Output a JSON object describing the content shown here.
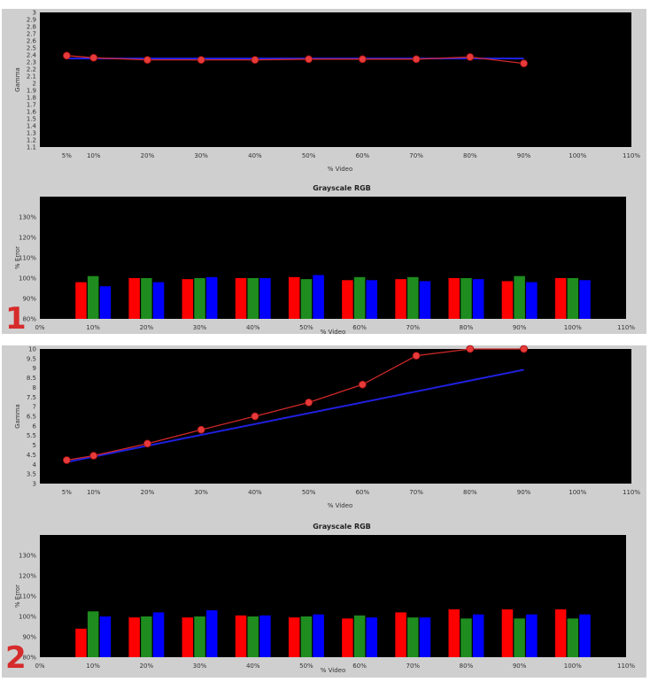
{
  "sections": [
    {
      "label": "1",
      "label_color": "#d62b2b"
    },
    {
      "label": "2",
      "label_color": "#d62b2b"
    }
  ],
  "colors": {
    "measured_line": "#d22828",
    "target_line": "#2020e0",
    "marker": "#e83a3a",
    "red_bar": "#ff0000",
    "green_bar": "#1e8c1e",
    "blue_bar": "#0000ff"
  },
  "chart_data": [
    {
      "type": "line",
      "xlabel": "% Video",
      "ylabel": "Gamma",
      "x_ticks": [
        "5%",
        "10%",
        "20%",
        "30%",
        "40%",
        "50%",
        "60%",
        "70%",
        "80%",
        "90%",
        "100%",
        "110%"
      ],
      "x_tick_values": [
        5,
        10,
        20,
        30,
        40,
        50,
        60,
        70,
        80,
        90,
        100,
        110
      ],
      "xlim": [
        0,
        110
      ],
      "y_ticks": [
        "1.1",
        "1.2",
        "1.3",
        "1.4",
        "1.5",
        "1.6",
        "1.7",
        "1.8",
        "1.9",
        "2",
        "2.1",
        "2.2",
        "2.3",
        "2.4",
        "2.5",
        "2.6",
        "2.7",
        "2.8",
        "2.9",
        "3"
      ],
      "ylim": [
        1.1,
        3.0
      ],
      "series": [
        {
          "role": "measured",
          "x": [
            5,
            10,
            20,
            30,
            40,
            50,
            60,
            70,
            80,
            90
          ],
          "values": [
            2.39,
            2.36,
            2.33,
            2.33,
            2.33,
            2.34,
            2.34,
            2.34,
            2.37,
            2.28
          ]
        },
        {
          "role": "target",
          "x": [
            5,
            90
          ],
          "values": [
            2.35,
            2.35
          ]
        }
      ]
    },
    {
      "type": "bar",
      "title": "Grayscale RGB",
      "xlabel": "% Video",
      "ylabel": "% Error",
      "x_ticks": [
        "0%",
        "10%",
        "20%",
        "30%",
        "40%",
        "50%",
        "60%",
        "70%",
        "80%",
        "90%",
        "100%",
        "110%"
      ],
      "x_tick_values": [
        0,
        10,
        20,
        30,
        40,
        50,
        60,
        70,
        80,
        90,
        100,
        110
      ],
      "xlim": [
        0,
        110
      ],
      "y_ticks": [
        "80%",
        "90%",
        "100%",
        "110%",
        "120%",
        "130%"
      ],
      "ylim": [
        80,
        140
      ],
      "categories": [
        10,
        20,
        30,
        40,
        50,
        60,
        70,
        80,
        90,
        100
      ],
      "series": [
        {
          "channel": "red",
          "values": [
            98,
            100,
            99.5,
            100,
            100.5,
            99,
            99.5,
            100,
            98.5,
            100
          ]
        },
        {
          "channel": "green",
          "values": [
            101,
            100,
            100,
            100,
            99.5,
            100.5,
            100.5,
            100,
            101,
            100
          ]
        },
        {
          "channel": "blue",
          "values": [
            96,
            98,
            100.5,
            100,
            101.5,
            99,
            98.5,
            99.5,
            98,
            99
          ]
        }
      ]
    },
    {
      "type": "line",
      "xlabel": "% Video",
      "ylabel": "Gamma",
      "x_ticks": [
        "5%",
        "10%",
        "20%",
        "30%",
        "40%",
        "50%",
        "60%",
        "70%",
        "80%",
        "90%",
        "100%",
        "110%"
      ],
      "x_tick_values": [
        5,
        10,
        20,
        30,
        40,
        50,
        60,
        70,
        80,
        90,
        100,
        110
      ],
      "xlim": [
        0,
        110
      ],
      "y_ticks": [
        "3",
        "3.5",
        "4",
        "4.5",
        "5",
        "5.5",
        "6",
        "6.5",
        "7",
        "7.5",
        "8",
        "8.5",
        "9",
        "9.5",
        "10"
      ],
      "ylim": [
        3,
        10
      ],
      "series": [
        {
          "role": "measured",
          "x": [
            5,
            10,
            20,
            30,
            40,
            50,
            60,
            70,
            80,
            90
          ],
          "values": [
            4.22,
            4.45,
            5.08,
            5.8,
            6.5,
            7.22,
            8.15,
            9.65,
            10.0,
            10.0
          ]
        },
        {
          "role": "target",
          "x": [
            5,
            90
          ],
          "values": [
            4.12,
            8.92
          ]
        }
      ]
    },
    {
      "type": "bar",
      "title": "Grayscale RGB",
      "xlabel": "% Video",
      "ylabel": "% Error",
      "x_ticks": [
        "0%",
        "10%",
        "20%",
        "30%",
        "40%",
        "50%",
        "60%",
        "70%",
        "80%",
        "90%",
        "100%",
        "110%"
      ],
      "x_tick_values": [
        0,
        10,
        20,
        30,
        40,
        50,
        60,
        70,
        80,
        90,
        100,
        110
      ],
      "xlim": [
        0,
        110
      ],
      "y_ticks": [
        "80%",
        "90%",
        "100%",
        "110%",
        "120%",
        "130%"
      ],
      "ylim": [
        80,
        140
      ],
      "categories": [
        10,
        20,
        30,
        40,
        50,
        60,
        70,
        80,
        90,
        100
      ],
      "series": [
        {
          "channel": "red",
          "values": [
            94,
            99.5,
            99.5,
            100.5,
            99.5,
            99,
            102,
            103.5,
            103.5,
            103.5
          ]
        },
        {
          "channel": "green",
          "values": [
            102.5,
            100,
            100,
            100,
            100,
            100.5,
            99.5,
            99,
            99,
            99
          ]
        },
        {
          "channel": "blue",
          "values": [
            100,
            102,
            103,
            100.5,
            101,
            99.5,
            99.5,
            101,
            101,
            101
          ]
        }
      ]
    }
  ]
}
